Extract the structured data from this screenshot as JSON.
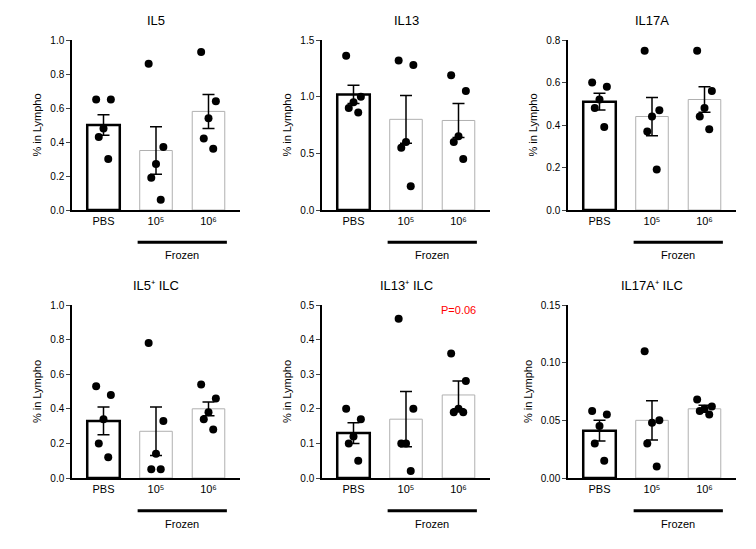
{
  "chart_data": [
    {
      "type": "bar",
      "title": "IL5",
      "y_label": "% in Lympho",
      "categories": [
        "PBS",
        "10⁵",
        "10⁶"
      ],
      "values": [
        0.5,
        0.35,
        0.58
      ],
      "errors": [
        0.06,
        0.14,
        0.1
      ],
      "points": [
        [
          0.65,
          0.65,
          0.48,
          0.43,
          0.3
        ],
        [
          0.86,
          0.37,
          0.27,
          0.19,
          0.06
        ],
        [
          0.93,
          0.64,
          0.54,
          0.42,
          0.36
        ]
      ],
      "colors": [
        "#000000",
        "#b0b0b0",
        "#b0b0b0"
      ],
      "group": {
        "label": "Frozen",
        "categories": [
          "10⁵",
          "10⁶"
        ]
      },
      "ylim": [
        0,
        1.0
      ],
      "yticks": [
        {
          "value": 0,
          "label": "0.0"
        },
        0.2,
        0.4,
        0.6,
        0.8,
        {
          "value": 1.0,
          "label": "1.0"
        }
      ],
      "grid": false
    },
    {
      "type": "bar",
      "title": "IL13",
      "y_label": "% in Lympho",
      "categories": [
        "PBS",
        "10⁵",
        "10⁶"
      ],
      "values": [
        1.02,
        0.8,
        0.79
      ],
      "errors": [
        0.08,
        0.21,
        0.15
      ],
      "points": [
        [
          1.36,
          1.0,
          0.95,
          0.9,
          0.86
        ],
        [
          1.32,
          1.28,
          0.6,
          0.55,
          0.21
        ],
        [
          1.19,
          1.05,
          0.65,
          0.6,
          0.45
        ]
      ],
      "colors": [
        "#000000",
        "#b0b0b0",
        "#b0b0b0"
      ],
      "group": {
        "label": "Frozen",
        "categories": [
          "10⁵",
          "10⁶"
        ]
      },
      "ylim": [
        0,
        1.5
      ],
      "yticks": [
        {
          "value": 0,
          "label": "0.0"
        },
        0.5,
        {
          "value": 1.0,
          "label": "1.0"
        },
        1.5
      ],
      "grid": false
    },
    {
      "type": "bar",
      "title": "IL17A",
      "y_label": "% in Lympho",
      "categories": [
        "PBS",
        "10⁵",
        "10⁶"
      ],
      "values": [
        0.51,
        0.44,
        0.52
      ],
      "errors": [
        0.04,
        0.09,
        0.06
      ],
      "points": [
        [
          0.6,
          0.58,
          0.52,
          0.48,
          0.39
        ],
        [
          0.75,
          0.47,
          0.44,
          0.37,
          0.19
        ],
        [
          0.75,
          0.56,
          0.48,
          0.44,
          0.38
        ]
      ],
      "colors": [
        "#000000",
        "#b0b0b0",
        "#b0b0b0"
      ],
      "group": {
        "label": "Frozen",
        "categories": [
          "10⁵",
          "10⁶"
        ]
      },
      "ylim": [
        0,
        0.8
      ],
      "yticks": [
        {
          "value": 0,
          "label": "0.0"
        },
        0.2,
        0.4,
        0.6,
        0.8
      ],
      "grid": false
    },
    {
      "type": "bar",
      "title": "IL5⁺ ILC",
      "y_label": "% in Lympho",
      "categories": [
        "PBS",
        "10⁵",
        "10⁶"
      ],
      "values": [
        0.33,
        0.27,
        0.4
      ],
      "errors": [
        0.08,
        0.14,
        0.04
      ],
      "points": [
        [
          0.53,
          0.48,
          0.34,
          0.2,
          0.12
        ],
        [
          0.78,
          0.33,
          0.14,
          0.05,
          0.05
        ],
        [
          0.54,
          0.46,
          0.38,
          0.34,
          0.28
        ]
      ],
      "colors": [
        "#000000",
        "#b0b0b0",
        "#b0b0b0"
      ],
      "group": {
        "label": "Frozen",
        "categories": [
          "10⁵",
          "10⁶"
        ]
      },
      "ylim": [
        0,
        1.0
      ],
      "yticks": [
        {
          "value": 0,
          "label": "0.0"
        },
        0.2,
        0.4,
        0.6,
        0.8,
        {
          "value": 1.0,
          "label": "1.0"
        }
      ],
      "grid": false
    },
    {
      "type": "bar",
      "title": "IL13⁺ ILC",
      "y_label": "% in Lympho",
      "categories": [
        "PBS",
        "10⁵",
        "10⁶"
      ],
      "values": [
        0.13,
        0.17,
        0.24
      ],
      "errors": [
        0.03,
        0.08,
        0.04
      ],
      "points": [
        [
          0.2,
          0.17,
          0.12,
          0.1,
          0.05
        ],
        [
          0.46,
          0.2,
          0.1,
          0.1,
          0.02
        ],
        [
          0.36,
          0.28,
          0.2,
          0.19,
          0.19
        ]
      ],
      "colors": [
        "#000000",
        "#b0b0b0",
        "#b0b0b0"
      ],
      "group": {
        "label": "Frozen",
        "categories": [
          "10⁵",
          "10⁶"
        ]
      },
      "annotations": [
        {
          "text": "P=0.06",
          "category": "10⁶",
          "color": "#ff0000"
        }
      ],
      "ylim": [
        0,
        0.5
      ],
      "yticks": [
        {
          "value": 0,
          "label": "0.0"
        },
        0.1,
        0.2,
        0.3,
        0.4,
        0.5
      ],
      "grid": false
    },
    {
      "type": "bar",
      "title": "IL17A⁺ ILC",
      "y_label": "% in Lympho",
      "categories": [
        "PBS",
        "10⁵",
        "10⁶"
      ],
      "values": [
        0.041,
        0.05,
        0.06
      ],
      "errors": [
        0.009,
        0.017,
        0.003
      ],
      "points": [
        [
          0.058,
          0.055,
          0.045,
          0.03,
          0.015
        ],
        [
          0.11,
          0.05,
          0.048,
          0.03,
          0.01
        ],
        [
          0.068,
          0.062,
          0.06,
          0.058,
          0.055
        ]
      ],
      "colors": [
        "#000000",
        "#b0b0b0",
        "#b0b0b0"
      ],
      "group": {
        "label": "Frozen",
        "categories": [
          "10⁵",
          "10⁶"
        ]
      },
      "ylim": [
        0,
        0.15
      ],
      "yticks": [
        {
          "value": 0,
          "label": "0.00"
        },
        0.05,
        {
          "value": 0.1,
          "label": "0.10"
        },
        0.15
      ],
      "grid": false
    }
  ]
}
